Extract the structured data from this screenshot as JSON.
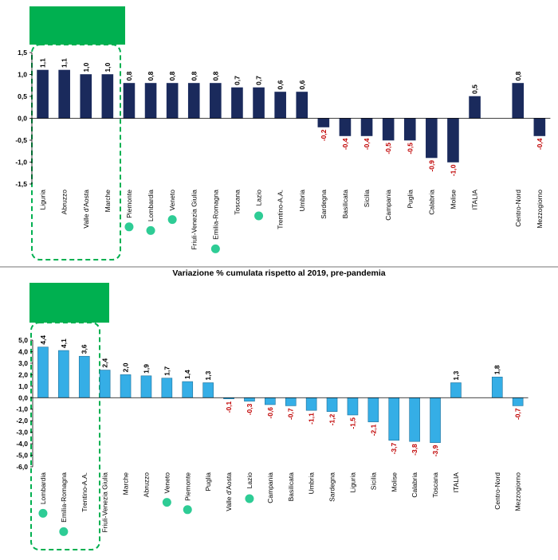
{
  "colors": {
    "panel1_bar": "#1a2a5c",
    "panel2_bar": "#35aee6",
    "panel2_bar_stroke": "#1d6f9a",
    "positive_label": "#000000",
    "negative_label": "#c00000",
    "highlight_box": "#00b050",
    "highlight_border": "#00b050",
    "dot": "#2ecc95",
    "axis": "#000000"
  },
  "separator_title": "Variazione % cumulata rispetto al 2019, pre-pandemia",
  "chart_data": [
    {
      "type": "bar",
      "title": "",
      "xlabel": "",
      "ylabel": "",
      "ylim": [
        -1.5,
        1.5
      ],
      "yticks": [
        "1,5",
        "1,0",
        "0,5",
        "0,0",
        "-0,5",
        "-1,0",
        "-1,5"
      ],
      "ytick_values": [
        1.5,
        1.0,
        0.5,
        0.0,
        -0.5,
        -1.0,
        -1.5
      ],
      "categories": [
        "Liguria",
        "Abruzzo",
        "Valle d'Aosta",
        "Marche",
        "Piemonte",
        "Lombardia",
        "Veneto",
        "Friuli-Venezia Giulia",
        "Emilia-Romagna",
        "Toscana",
        "Lazio",
        "Trentino-A.A.",
        "Umbria",
        "Sardegna",
        "Basilicata",
        "Sicilia",
        "Campania",
        "Puglia",
        "Calabria",
        "Molise",
        "ITALIA",
        "",
        "Centro-Nord",
        "Mezzogiorno"
      ],
      "values": [
        1.1,
        1.1,
        1.0,
        1.0,
        0.8,
        0.8,
        0.8,
        0.8,
        0.8,
        0.7,
        0.7,
        0.6,
        0.6,
        -0.2,
        -0.4,
        -0.4,
        -0.5,
        -0.5,
        -0.9,
        -1.0,
        0.5,
        null,
        0.8,
        -0.4
      ],
      "value_labels": [
        "1,1",
        "1,1",
        "1,0",
        "1,0",
        "0,8",
        "0,8",
        "0,8",
        "0,8",
        "0,8",
        "0,7",
        "0,7",
        "0,6",
        "0,6",
        "-0,2",
        "-0,4",
        "-0,4",
        "-0,5",
        "-0,5",
        "-0,9",
        "-1,0",
        "0,5",
        "",
        "0,8",
        "-0,4"
      ],
      "markers": [
        "Piemonte",
        "Lombardia",
        "Veneto",
        "Emilia-Romagna",
        "Lazio"
      ],
      "highlighted": [
        "Liguria",
        "Abruzzo",
        "Valle d'Aosta",
        "Marche"
      ]
    },
    {
      "type": "bar",
      "title": "",
      "xlabel": "",
      "ylabel": "",
      "ylim": [
        -6.0,
        5.0
      ],
      "yticks": [
        "5,0",
        "4,0",
        "3,0",
        "2,0",
        "1,0",
        "0,0",
        "-1,0",
        "-2,0",
        "-3,0",
        "-4,0",
        "-5,0",
        "-6,0"
      ],
      "ytick_values": [
        5,
        4,
        3,
        2,
        1,
        0,
        -1,
        -2,
        -3,
        -4,
        -5,
        -6
      ],
      "categories": [
        "Lombardia",
        "Emilia-Romagna",
        "Trentino-A.A.",
        "Friuli-Venezia Giulia",
        "Marche",
        "Abruzzo",
        "Veneto",
        "Piemonte",
        "Puglia",
        "Valle d'Aosta",
        "Lazio",
        "Campania",
        "Basilicata",
        "Umbria",
        "Sardegna",
        "Liguria",
        "Sicilia",
        "Molise",
        "Calabria",
        "Toscana",
        "ITALIA",
        "",
        "Centro-Nord",
        "Mezzogiorno"
      ],
      "values": [
        4.4,
        4.1,
        3.6,
        2.4,
        2.0,
        1.9,
        1.7,
        1.4,
        1.3,
        -0.1,
        -0.3,
        -0.6,
        -0.7,
        -1.1,
        -1.2,
        -1.5,
        -2.1,
        -3.7,
        -3.8,
        -3.9,
        1.3,
        null,
        1.8,
        -0.7
      ],
      "value_labels": [
        "4,4",
        "4,1",
        "3,6",
        "2,4",
        "2,0",
        "1,9",
        "1,7",
        "1,4",
        "1,3",
        "-0,1",
        "-0,3",
        "-0,6",
        "-0,7",
        "-1,1",
        "-1,2",
        "-1,5",
        "-2,1",
        "-3,7",
        "-3,8",
        "-3,9",
        "1,3",
        "",
        "1,8",
        "-0,7"
      ],
      "markers": [
        "Lombardia",
        "Emilia-Romagna",
        "Veneto",
        "Piemonte",
        "Lazio"
      ],
      "highlighted": [
        "Lombardia",
        "Emilia-Romagna",
        "Trentino-A.A."
      ]
    }
  ]
}
